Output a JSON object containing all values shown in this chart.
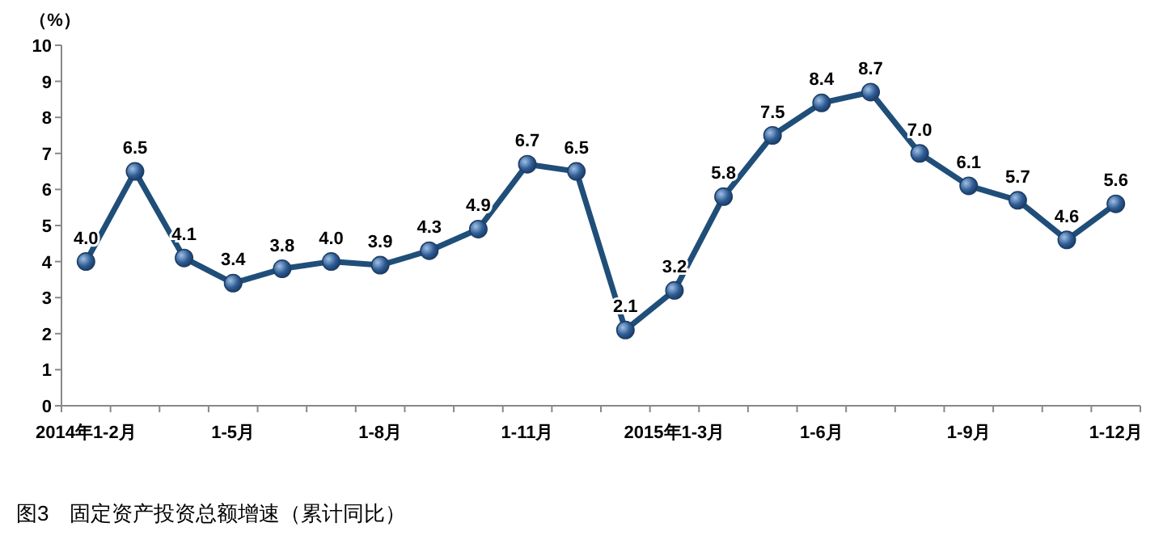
{
  "chart_data": {
    "type": "line",
    "title": "图3　固定资产投资总额增速（累计同比）",
    "ylabel": "（%）",
    "categories": [
      "2014年1-2月",
      null,
      null,
      "1-5月",
      null,
      null,
      "1-8月",
      null,
      null,
      "1-11月",
      null,
      null,
      "2015年1-3月",
      null,
      null,
      "1-6月",
      null,
      null,
      "1-9月",
      null,
      null,
      "1-12月"
    ],
    "series": [
      {
        "color": "#1f4e79",
        "values": [
          4.0,
          6.5,
          4.1,
          3.4,
          3.8,
          4.0,
          3.9,
          4.3,
          4.9,
          6.7,
          6.5,
          2.1,
          3.2,
          5.8,
          7.5,
          8.4,
          8.7,
          7.0,
          6.1,
          5.7,
          4.6,
          5.6
        ],
        "value_labels": [
          "4.0",
          "6.5",
          "4.1",
          "3.4",
          "3.8",
          "4.0",
          "3.9",
          "4.3",
          "4.9",
          "6.7",
          "6.5",
          "2.1",
          "3.2",
          "5.8",
          "7.5",
          "8.4",
          "8.7",
          "7.0",
          "6.1",
          "5.7",
          "4.6",
          "5.6"
        ]
      }
    ],
    "ylim": [
      0,
      10
    ],
    "yticks": [
      0,
      1,
      2,
      3,
      4,
      5,
      6,
      7,
      8,
      9,
      10
    ],
    "grid": false,
    "marker": "circle"
  }
}
